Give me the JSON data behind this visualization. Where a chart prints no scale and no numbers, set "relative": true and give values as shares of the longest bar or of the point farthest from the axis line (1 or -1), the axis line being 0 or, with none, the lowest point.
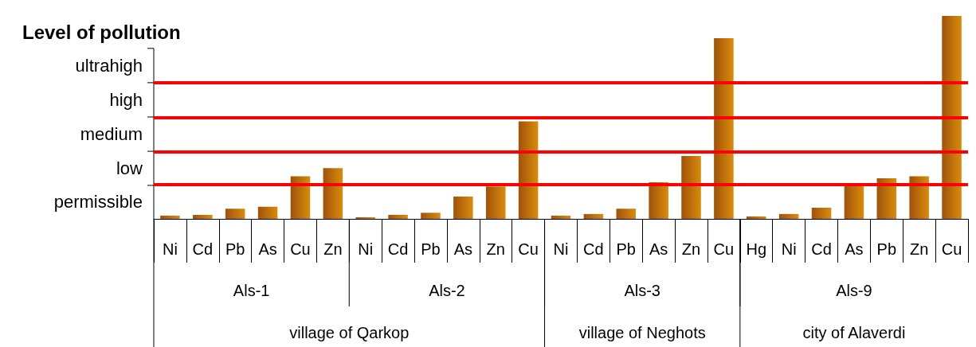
{
  "chart_data": {
    "type": "bar",
    "ylabel": "Level of pollution",
    "relative": true,
    "categories": [
      "Ni",
      "Cd",
      "Pb",
      "As",
      "Cu",
      "Zn",
      "Ni",
      "Cd",
      "Pb",
      "As",
      "Zn",
      "Cu",
      "Ni",
      "Cd",
      "Pb",
      "As",
      "Zn",
      "Cu",
      "Hg",
      "Ni",
      "Cd",
      "As",
      "Pb",
      "Zn",
      "Cu"
    ],
    "values": [
      0.016,
      0.02,
      0.05,
      0.06,
      0.21,
      0.25,
      0.008,
      0.02,
      0.03,
      0.11,
      0.16,
      0.48,
      0.016,
      0.024,
      0.05,
      0.18,
      0.31,
      0.89,
      0.012,
      0.024,
      0.055,
      0.17,
      0.2,
      0.21,
      1
    ],
    "color": "#d98c0a",
    "ref_lines": [
      {
        "axis": "y",
        "value": 0.165,
        "color": "#ff0000"
      },
      {
        "axis": "y",
        "value": 0.333,
        "color": "#ff0000"
      },
      {
        "axis": "y",
        "value": 0.502,
        "color": "#ff0000"
      },
      {
        "axis": "y",
        "value": 0.671,
        "color": "#ff0000"
      }
    ],
    "annotations": [
      "permissible",
      "low",
      "medium",
      "high",
      "ultrahigh",
      "Als-1",
      "Als-2",
      "Als-3",
      "Als-9",
      "village of Qarkop",
      "village of Neghots",
      "city of Alaverdi"
    ]
  }
}
